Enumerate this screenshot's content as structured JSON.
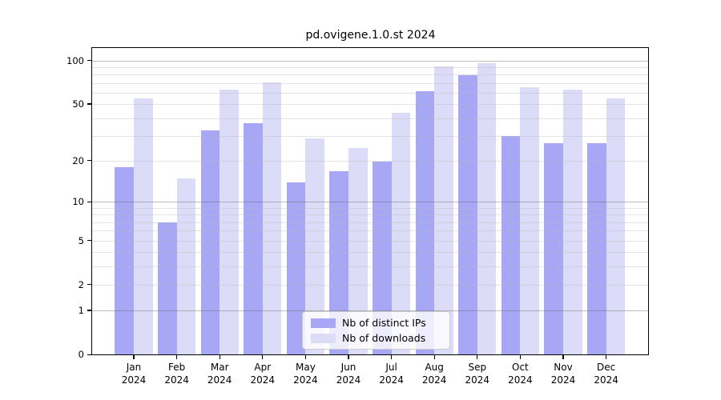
{
  "title": "pd.ovigene.1.0.st 2024",
  "legend": {
    "items": [
      {
        "label": "Nb of distinct IPs",
        "color": "#a7a7f5"
      },
      {
        "label": "Nb of downloads",
        "color": "#dcdcf9"
      }
    ]
  },
  "colors": {
    "bar_distinct_ips": "#a7a7f5",
    "bar_downloads": "#dcdcf9",
    "major_gridline": "#c3c3c3",
    "minor_gridline": "#e6e6e6",
    "spine": "#000000"
  },
  "chart_data": {
    "type": "bar",
    "title": "pd.ovigene.1.0.st 2024",
    "yscale": "log1p",
    "grid": true,
    "legend_position": "bottom-center",
    "categories": [
      "Jan 2024",
      "Feb 2024",
      "Mar 2024",
      "Apr 2024",
      "May 2024",
      "Jun 2024",
      "Jul 2024",
      "Aug 2024",
      "Sep 2024",
      "Oct 2024",
      "Nov 2024",
      "Dec 2024"
    ],
    "series": [
      {
        "name": "Nb of distinct IPs",
        "color": "#a7a7f5",
        "values": [
          18,
          7,
          33,
          37,
          14,
          17,
          20,
          62,
          80,
          30,
          27,
          27
        ]
      },
      {
        "name": "Nb of downloads",
        "color": "#dcdcf9",
        "values": [
          55,
          15,
          64,
          71,
          29,
          25,
          44,
          92,
          97,
          66,
          64,
          55
        ]
      }
    ],
    "ytick_labels": [
      "100",
      "50",
      "20",
      "10",
      "5",
      "2",
      "1",
      "0"
    ],
    "ytick_values": [
      100,
      50,
      20,
      10,
      5,
      2,
      1,
      0
    ],
    "major_gridline_values": [
      1,
      10,
      100
    ],
    "minor_gridline_values": [
      2,
      3,
      4,
      5,
      6,
      7,
      8,
      9,
      20,
      30,
      40,
      50,
      60,
      70,
      80,
      90
    ],
    "ylim": [
      0,
      122
    ],
    "xlabel": "",
    "ylabel": ""
  }
}
